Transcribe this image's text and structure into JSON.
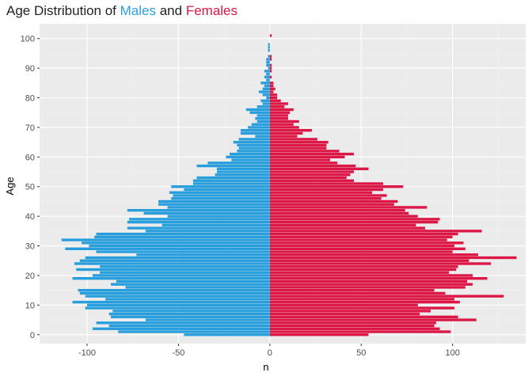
{
  "title": {
    "prefix": "Age Distribution of ",
    "males": "Males",
    "middle": " and ",
    "females": "Females"
  },
  "colors": {
    "male": "#299EDD",
    "female": "#DC1645",
    "panel": "#EBEBEB",
    "grid_major": "#FFFFFF",
    "grid_minor": "#F2F2F2"
  },
  "chart_data": {
    "type": "bar",
    "orientation": "horizontal",
    "title": "Age Distribution of Males and Females",
    "xlabel": "n",
    "ylabel": "Age",
    "xlim": [
      -126,
      140
    ],
    "ylim": [
      -3,
      105
    ],
    "x_ticks": [
      -100,
      -50,
      0,
      50,
      100
    ],
    "x_tick_labels": [
      "-100",
      "-50",
      "0",
      "50",
      "100"
    ],
    "y_ticks": [
      0,
      10,
      20,
      30,
      40,
      50,
      60,
      70,
      80,
      90,
      100
    ],
    "y_tick_labels": [
      "0",
      "10",
      "20",
      "30",
      "40",
      "50",
      "60",
      "70",
      "80",
      "90",
      "100"
    ],
    "grid": true,
    "legend": "none (series named in title colors)",
    "categories": [
      0,
      1,
      2,
      3,
      4,
      5,
      6,
      7,
      8,
      9,
      10,
      11,
      12,
      13,
      14,
      15,
      16,
      17,
      18,
      19,
      20,
      21,
      22,
      23,
      24,
      25,
      26,
      27,
      28,
      29,
      30,
      31,
      32,
      33,
      34,
      35,
      36,
      37,
      38,
      39,
      40,
      41,
      42,
      43,
      44,
      45,
      46,
      47,
      48,
      49,
      50,
      51,
      52,
      53,
      54,
      55,
      56,
      57,
      58,
      59,
      60,
      61,
      62,
      63,
      64,
      65,
      66,
      67,
      68,
      69,
      70,
      71,
      72,
      73,
      74,
      75,
      76,
      77,
      78,
      79,
      80,
      81,
      82,
      83,
      84,
      85,
      86,
      87,
      88,
      89,
      90,
      91,
      92,
      93,
      94,
      95,
      96,
      97,
      98,
      99,
      100,
      101,
      102,
      103,
      104,
      105
    ],
    "series": [
      {
        "name": "Males",
        "values": [
          -47,
          -83,
          -97,
          -88,
          -95,
          -68,
          -87,
          -88,
          -86,
          -101,
          -100,
          -108,
          -90,
          -101,
          -104,
          -105,
          -79,
          -87,
          -84,
          -108,
          -97,
          -93,
          -106,
          -93,
          -107,
          -104,
          -101,
          -73,
          -95,
          -112,
          -99,
          -103,
          -114,
          -96,
          -95,
          -68,
          -78,
          -59,
          -78,
          -77,
          -56,
          -69,
          -78,
          -56,
          -61,
          -61,
          -54,
          -53,
          -55,
          -47,
          -54,
          -42,
          -42,
          -40,
          -30,
          -29,
          -29,
          -40,
          -34,
          -21,
          -24,
          -22,
          -18,
          -17,
          -18,
          -20,
          -17,
          -8,
          -16,
          -16,
          -12,
          -10,
          -7,
          -8,
          -7,
          -11,
          -13,
          -7,
          -4,
          -5,
          -2,
          -4,
          -6,
          -4,
          -3,
          -5,
          -2,
          -3,
          -2,
          -3,
          -1,
          -2,
          -2,
          -2,
          -1,
          0,
          -1,
          -1,
          -1,
          0,
          0,
          0,
          0,
          0,
          0,
          0
        ]
      },
      {
        "name": "Females",
        "values": [
          54,
          99,
          93,
          90,
          91,
          113,
          103,
          82,
          88,
          101,
          81,
          104,
          101,
          128,
          96,
          90,
          107,
          111,
          108,
          119,
          111,
          98,
          102,
          103,
          121,
          109,
          135,
          114,
          100,
          107,
          101,
          106,
          97,
          100,
          103,
          116,
          85,
          80,
          92,
          93,
          81,
          76,
          74,
          86,
          68,
          70,
          61,
          64,
          56,
          62,
          73,
          62,
          46,
          42,
          44,
          46,
          54,
          47,
          37,
          33,
          41,
          46,
          38,
          31,
          31,
          32,
          26,
          15,
          18,
          23,
          16,
          13,
          16,
          10,
          10,
          11,
          13,
          8,
          10,
          6,
          4,
          4,
          2,
          3,
          2,
          2,
          0,
          1,
          0,
          1,
          1,
          1,
          0,
          1,
          1,
          0,
          0,
          0,
          0,
          0,
          0,
          1,
          0,
          0,
          0,
          0
        ]
      }
    ]
  }
}
